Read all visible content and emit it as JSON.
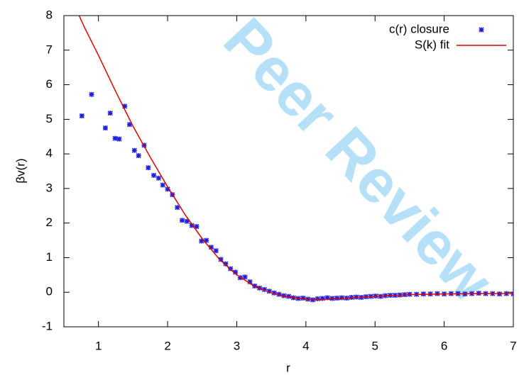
{
  "chart_data": {
    "type": "scatter",
    "watermark": "Peer Review",
    "xlabel": "r",
    "ylabel": "βv(r)",
    "xlim": [
      0.5,
      7
    ],
    "xticks": [
      1,
      2,
      3,
      4,
      5,
      6,
      7
    ],
    "ylim": [
      -1,
      8
    ],
    "yticks": [
      -1,
      0,
      1,
      2,
      3,
      4,
      5,
      6,
      7,
      8
    ],
    "legend": "top-right",
    "series": [
      {
        "name": "c(r) closure",
        "type": "scatter",
        "color": "#1f1fe0",
        "x": [
          0.76,
          0.9,
          1.1,
          1.17,
          1.24,
          1.3,
          1.38,
          1.45,
          1.52,
          1.58,
          1.66,
          1.72,
          1.8,
          1.87,
          1.93,
          2.0,
          2.07,
          2.14,
          2.21,
          2.28,
          2.35,
          2.42,
          2.49,
          2.56,
          2.63,
          2.7,
          2.77,
          2.84,
          2.91,
          2.98,
          3.05,
          3.12,
          3.19,
          3.26,
          3.33,
          3.4,
          3.47,
          3.54,
          3.61,
          3.68,
          3.75,
          3.82,
          3.89,
          3.96,
          4.03,
          4.1,
          4.17,
          4.24,
          4.31,
          4.38,
          4.45,
          4.52,
          4.59,
          4.66,
          4.73,
          4.8,
          4.87,
          4.94,
          5.01,
          5.08,
          5.15,
          5.22,
          5.29,
          5.36,
          5.43,
          5.5,
          5.6,
          5.7,
          5.8,
          5.9,
          6.0,
          6.1,
          6.2,
          6.3,
          6.4,
          6.5,
          6.6,
          6.7,
          6.8,
          6.9,
          7.0
        ],
        "values": [
          5.1,
          5.72,
          4.75,
          5.18,
          4.45,
          4.43,
          5.38,
          4.85,
          4.1,
          3.95,
          4.25,
          3.6,
          3.38,
          3.3,
          3.1,
          2.98,
          2.82,
          2.45,
          2.08,
          2.05,
          1.93,
          1.9,
          1.48,
          1.5,
          1.3,
          1.2,
          0.95,
          0.82,
          0.68,
          0.58,
          0.42,
          0.44,
          0.3,
          0.18,
          0.12,
          0.08,
          0.03,
          -0.02,
          -0.06,
          -0.1,
          -0.12,
          -0.16,
          -0.18,
          -0.17,
          -0.2,
          -0.22,
          -0.19,
          -0.18,
          -0.16,
          -0.18,
          -0.17,
          -0.16,
          -0.17,
          -0.15,
          -0.14,
          -0.15,
          -0.13,
          -0.12,
          -0.11,
          -0.12,
          -0.1,
          -0.09,
          -0.09,
          -0.08,
          -0.07,
          -0.06,
          -0.06,
          -0.05,
          -0.05,
          -0.04,
          -0.05,
          -0.04,
          -0.04,
          -0.05,
          -0.04,
          -0.03,
          -0.04,
          -0.04,
          -0.05,
          -0.04,
          -0.05
        ]
      },
      {
        "name": "S(k) fit",
        "type": "line",
        "color": "#e00000",
        "x": [
          0.72,
          0.8,
          1.0,
          1.25,
          1.5,
          1.75,
          2.0,
          2.25,
          2.5,
          2.75,
          3.0,
          3.25,
          3.5,
          3.75,
          4.0,
          4.25,
          4.5,
          4.75,
          5.0,
          5.5,
          6.0,
          6.5,
          7.0
        ],
        "values": [
          8,
          7.65,
          6.85,
          5.8,
          4.8,
          3.9,
          3.05,
          2.25,
          1.55,
          0.95,
          0.5,
          0.18,
          -0.02,
          -0.14,
          -0.2,
          -0.21,
          -0.18,
          -0.15,
          -0.12,
          -0.07,
          -0.05,
          -0.04,
          -0.04
        ]
      }
    ]
  }
}
